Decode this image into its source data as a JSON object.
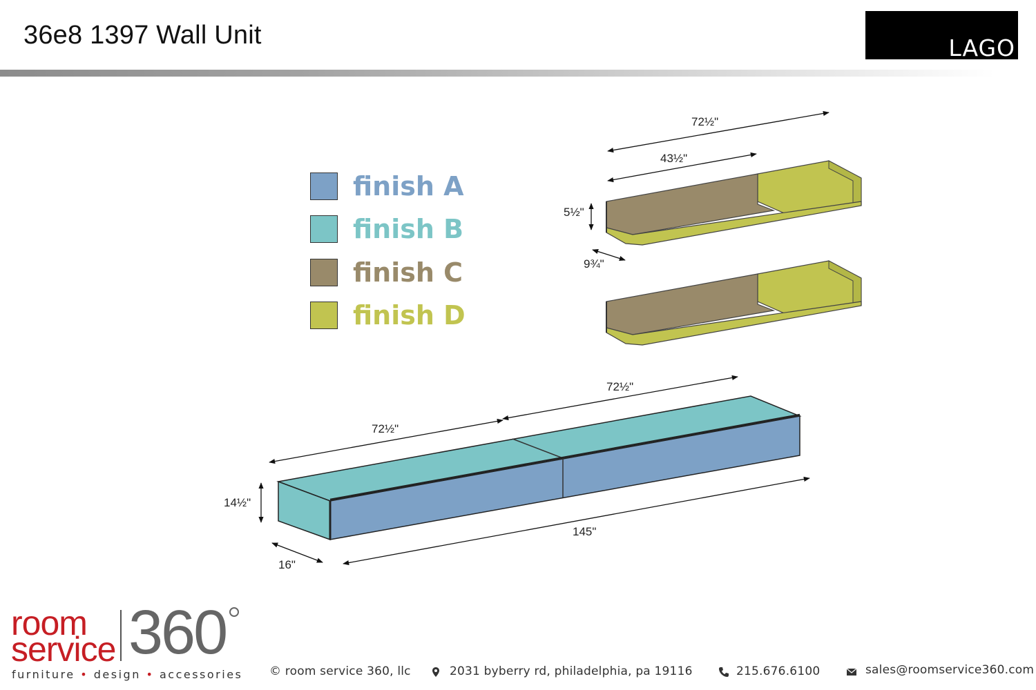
{
  "header": {
    "title": "36e8 1397 Wall Unit",
    "brand": "LAGO"
  },
  "legend": [
    {
      "label": "finish A",
      "color": "#7da1c6"
    },
    {
      "label": "finish B",
      "color": "#7cc5c6"
    },
    {
      "label": "finish C",
      "color": "#998a6a"
    },
    {
      "label": "finish D",
      "color": "#c1c450"
    }
  ],
  "dimensions": {
    "shelf_total_length": "72½\"",
    "shelf_back_length": "43½\"",
    "shelf_height": "5½\"",
    "shelf_depth": "9¾\"",
    "base_top_right": "72½\"",
    "base_top_left": "72½\"",
    "base_height": "14½\"",
    "base_length": "145\"",
    "base_depth": "16\""
  },
  "footer": {
    "logo_word_1": "room",
    "logo_word_2": "service",
    "logo_number": "360",
    "tagline_1": "furniture",
    "tagline_2": "design",
    "tagline_3": "accessories",
    "tagline_sep": "•",
    "copyright": "© room service 360, llc",
    "address": "2031 byberry rd, philadelphia, pa 19116",
    "phone": "215.676.6100",
    "email": "sales@roomservice360.com",
    "address_icon": "map-pin-icon",
    "phone_icon": "phone-icon",
    "email_icon": "envelope-icon"
  }
}
